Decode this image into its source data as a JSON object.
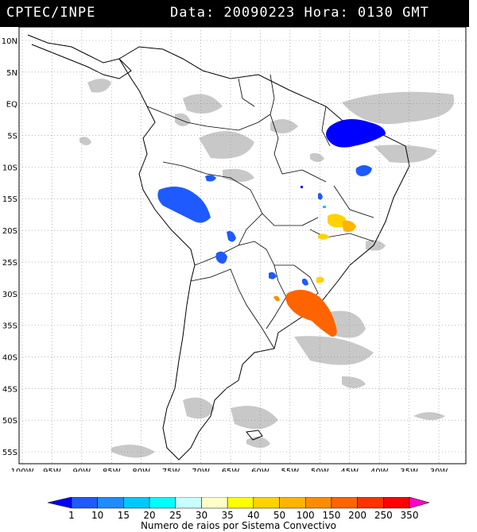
{
  "header": {
    "source": "CPTEC/INPE",
    "datetime": "Data: 20090223 Hora: 0130 GMT"
  },
  "map": {
    "lat_labels": [
      "10N",
      "5N",
      "EQ",
      "5S",
      "10S",
      "15S",
      "20S",
      "25S",
      "30S",
      "35S",
      "40S",
      "45S",
      "50S",
      "55S"
    ],
    "lon_labels": [
      "100W",
      "95W",
      "90W",
      "85W",
      "80W",
      "75W",
      "70W",
      "65W",
      "60W",
      "55W",
      "50W",
      "45W",
      "40W",
      "35W",
      "30W"
    ],
    "background_cloud_color": "#c8c8c8",
    "coast_color": "#000000"
  },
  "legend": {
    "labels": [
      "1",
      "10",
      "15",
      "20",
      "25",
      "30",
      "35",
      "40",
      "50",
      "100",
      "150",
      "200",
      "250",
      "350"
    ],
    "colors": [
      "#0000ff",
      "#1e5aff",
      "#1e8cff",
      "#00c8ff",
      "#00ffff",
      "#c8ffff",
      "#ffffc8",
      "#ffff00",
      "#ffd200",
      "#ffb400",
      "#ff8c00",
      "#ff6400",
      "#ff3200",
      "#ff0000",
      "#ff00c8"
    ],
    "caption": "Numero de raios por Sistema Convectivo"
  }
}
